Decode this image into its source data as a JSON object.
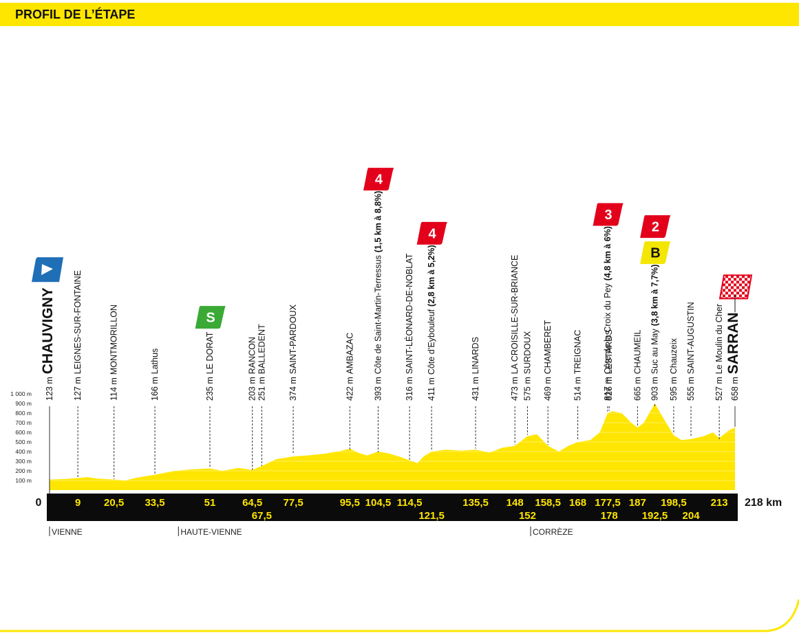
{
  "chart_data": {
    "type": "area",
    "title": "PROFIL DE L’ÉTAPE",
    "color": "#ffe600",
    "xlim": [
      0,
      218
    ],
    "ylim": [
      0,
      1000
    ],
    "grid": true,
    "yticks": [
      {
        "value": 100,
        "label": "100 m"
      },
      {
        "value": 200,
        "label": "200 m"
      },
      {
        "value": 300,
        "label": "300 m"
      },
      {
        "value": 400,
        "label": "400 m"
      },
      {
        "value": 500,
        "label": "500 m"
      },
      {
        "value": 600,
        "label": "600 m"
      },
      {
        "value": 700,
        "label": "700 m"
      },
      {
        "value": 800,
        "label": "800 m"
      },
      {
        "value": 900,
        "label": "900 m"
      },
      {
        "value": 1000,
        "label": "1 000 m"
      }
    ],
    "x": [
      0,
      5,
      9,
      12,
      15,
      20.5,
      24,
      28,
      33.5,
      40,
      45,
      51,
      55,
      60,
      64.5,
      67.5,
      72,
      77.5,
      82,
      88,
      93,
      95.5,
      98,
      101,
      104.5,
      108,
      111,
      114.5,
      117,
      119,
      121.5,
      126,
      131,
      135.5,
      140,
      144,
      148,
      152,
      155,
      158.5,
      162,
      165,
      168,
      172,
      175,
      177.5,
      179,
      182,
      185,
      187,
      189,
      192.5,
      195,
      198.5,
      201,
      204,
      208,
      211,
      213,
      216,
      218
    ],
    "values": [
      110,
      115,
      125,
      135,
      120,
      110,
      100,
      130,
      160,
      200,
      215,
      225,
      200,
      230,
      210,
      250,
      320,
      350,
      360,
      380,
      410,
      430,
      390,
      360,
      400,
      380,
      350,
      310,
      280,
      350,
      400,
      420,
      410,
      420,
      390,
      440,
      460,
      560,
      580,
      460,
      400,
      460,
      500,
      520,
      600,
      800,
      820,
      800,
      700,
      650,
      700,
      900,
      760,
      570,
      520,
      530,
      560,
      600,
      540,
      620,
      650
    ],
    "waypoints": [
      {
        "name": "CHAUVIGNY",
        "altitude": {
          "value": 123,
          "label": "123 m"
        },
        "km": {
          "value": 0,
          "label": "0"
        }
      },
      {
        "name": "LEIGNES-SUR-FONTAINE",
        "altitude": {
          "value": 127,
          "label": "127 m"
        },
        "km": {
          "value": 9,
          "label": "9"
        }
      },
      {
        "name": "MONTMORILLON",
        "altitude": {
          "value": 114,
          "label": "114 m"
        },
        "km": {
          "value": 20.5,
          "label": "20,5"
        }
      },
      {
        "name": "Lathus",
        "altitude": {
          "value": 166,
          "label": "166 m"
        },
        "km": {
          "value": 33.5,
          "label": "33,5"
        }
      },
      {
        "name": "LE DORAT",
        "altitude": {
          "value": 235,
          "label": "235 m"
        },
        "km": {
          "value": 51,
          "label": "51"
        },
        "sprint": "S"
      },
      {
        "name": "RANCON",
        "altitude": {
          "value": 203,
          "label": "203 m"
        },
        "km": {
          "value": 64.5,
          "label": "64,5"
        }
      },
      {
        "name": "BALLEDENT",
        "altitude": {
          "value": 251,
          "label": "251 m"
        },
        "km": {
          "value": 67.5,
          "label": "67,5"
        }
      },
      {
        "name": "SAINT-PARDOUX",
        "altitude": {
          "value": 374,
          "label": "374 m"
        },
        "km": {
          "value": 77.5,
          "label": "77,5"
        }
      },
      {
        "name": "AMBAZAC",
        "altitude": {
          "value": 422,
          "label": "422 m"
        },
        "km": {
          "value": 95.5,
          "label": "95,5"
        }
      },
      {
        "name": "Côte de Saint-Martin-Terressus",
        "climb": "(1,5 km à 8,8%)",
        "altitude": {
          "value": 393,
          "label": "393 m"
        },
        "km": {
          "value": 104.5,
          "label": "104,5"
        },
        "category": "4"
      },
      {
        "name": "SAINT-LÉONARD-DE-NOBLAT",
        "altitude": {
          "value": 316,
          "label": "316 m"
        },
        "km": {
          "value": 114.5,
          "label": "114,5"
        }
      },
      {
        "name": "Côte d’Eybouleuf",
        "climb": "(2,8 km à 5,2%)",
        "altitude": {
          "value": 411,
          "label": "411 m"
        },
        "km": {
          "value": 121.5,
          "label": "121,5"
        },
        "category": "4"
      },
      {
        "name": "LINARDS",
        "altitude": {
          "value": 431,
          "label": "431 m"
        },
        "km": {
          "value": 135.5,
          "label": "135,5"
        }
      },
      {
        "name": "LA CROISILLE-SUR-BRIANCE",
        "altitude": {
          "value": 473,
          "label": "473 m"
        },
        "km": {
          "value": 148,
          "label": "148"
        }
      },
      {
        "name": "SURDOUX",
        "altitude": {
          "value": 575,
          "label": "575 m"
        },
        "km": {
          "value": 152,
          "label": "152"
        }
      },
      {
        "name": "CHAMBERET",
        "altitude": {
          "value": 469,
          "label": "469 m"
        },
        "km": {
          "value": 158.5,
          "label": "158,5"
        }
      },
      {
        "name": "TREIGNAC",
        "altitude": {
          "value": 514,
          "label": "514 m"
        },
        "km": {
          "value": 168,
          "label": "168"
        }
      },
      {
        "name": "Côte de la Croix du Pey",
        "climb": "(4,8 km à 6%)",
        "altitude": {
          "value": 817,
          "label": "817 m"
        },
        "km": {
          "value": 177.5,
          "label": "177,5"
        },
        "category": "3"
      },
      {
        "name": "LESTARDS",
        "altitude": {
          "value": 826,
          "label": "826 m"
        },
        "km": {
          "value": 178,
          "label": "178"
        }
      },
      {
        "name": "CHAUMEIL",
        "altitude": {
          "value": 665,
          "label": "665 m"
        },
        "km": {
          "value": 187,
          "label": "187"
        }
      },
      {
        "name": "Suc au May",
        "climb": "(3,8 km à 7,7%)",
        "altitude": {
          "value": 903,
          "label": "903 m"
        },
        "km": {
          "value": 192.5,
          "label": "192,5"
        },
        "category": "2",
        "bonus": "B"
      },
      {
        "name": "Chauzeix",
        "altitude": {
          "value": 595,
          "label": "595 m"
        },
        "km": {
          "value": 198.5,
          "label": "198,5"
        }
      },
      {
        "name": "SAINT-AUGUSTIN",
        "altitude": {
          "value": 555,
          "label": "555 m"
        },
        "km": {
          "value": 204,
          "label": "204"
        }
      },
      {
        "name": "Le Moulin du Cher",
        "altitude": {
          "value": 527,
          "label": "527 m"
        },
        "km": {
          "value": 213,
          "label": "213"
        }
      },
      {
        "name": "SARRAN",
        "altitude": {
          "value": 658,
          "label": "658 m"
        },
        "km": {
          "value": 218,
          "label": "218 km"
        }
      }
    ],
    "regions": [
      {
        "name": "VIENNE",
        "km": 0
      },
      {
        "name": "HAUTE-VIENNE",
        "km": 41
      },
      {
        "name": "CORRÈZE",
        "km": 153
      }
    ]
  }
}
